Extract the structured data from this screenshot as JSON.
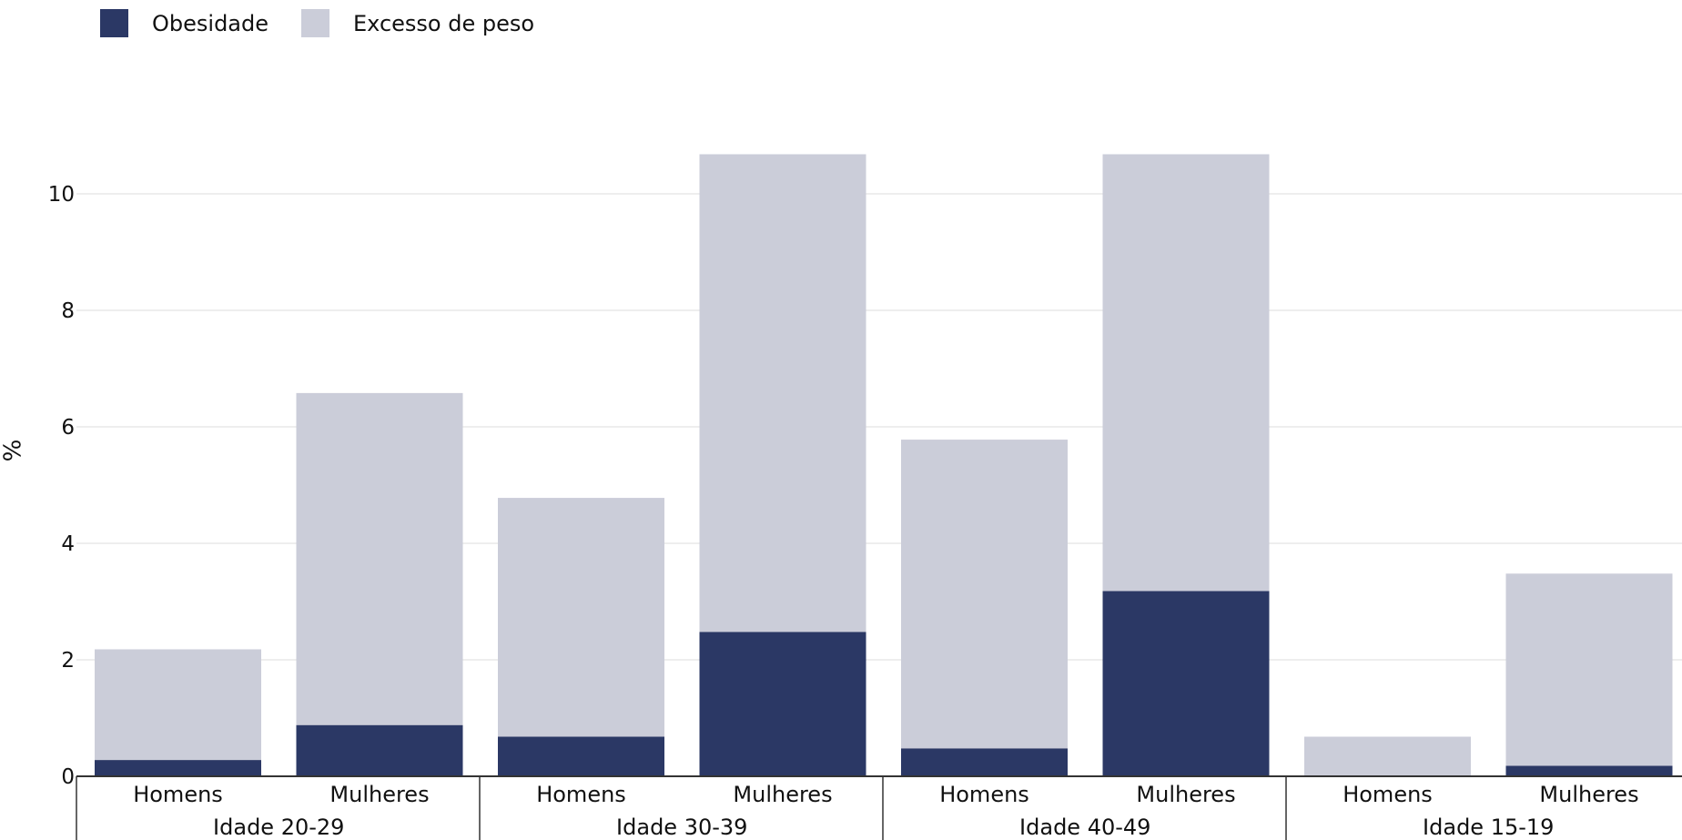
{
  "legend": {
    "obesity_label": "Obesidade",
    "overweight_label": "Excesso de peso",
    "obesity_color": "#2b3865",
    "overweight_color": "#cbcdd9"
  },
  "chart_data": {
    "type": "bar",
    "stacked": true,
    "ylabel": "%",
    "ylim": [
      0,
      11
    ],
    "yticks": [
      0,
      2,
      4,
      6,
      8,
      10
    ],
    "grid": true,
    "legend_position": "top-left",
    "groups": [
      "Idade 20-29",
      "Idade 30-39",
      "Idade 40-49",
      "Idade 15-19"
    ],
    "subcategories": [
      "Homens",
      "Mulheres"
    ],
    "series": [
      {
        "name": "Obesidade",
        "color": "#2b3865",
        "values": [
          0.28,
          0.88,
          0.68,
          2.48,
          0.48,
          3.18,
          0.0,
          0.18
        ]
      },
      {
        "name": "Excesso de peso",
        "color": "#cbcdd9",
        "values": [
          1.9,
          5.7,
          4.1,
          8.2,
          5.3,
          7.5,
          0.68,
          3.3
        ]
      }
    ]
  }
}
